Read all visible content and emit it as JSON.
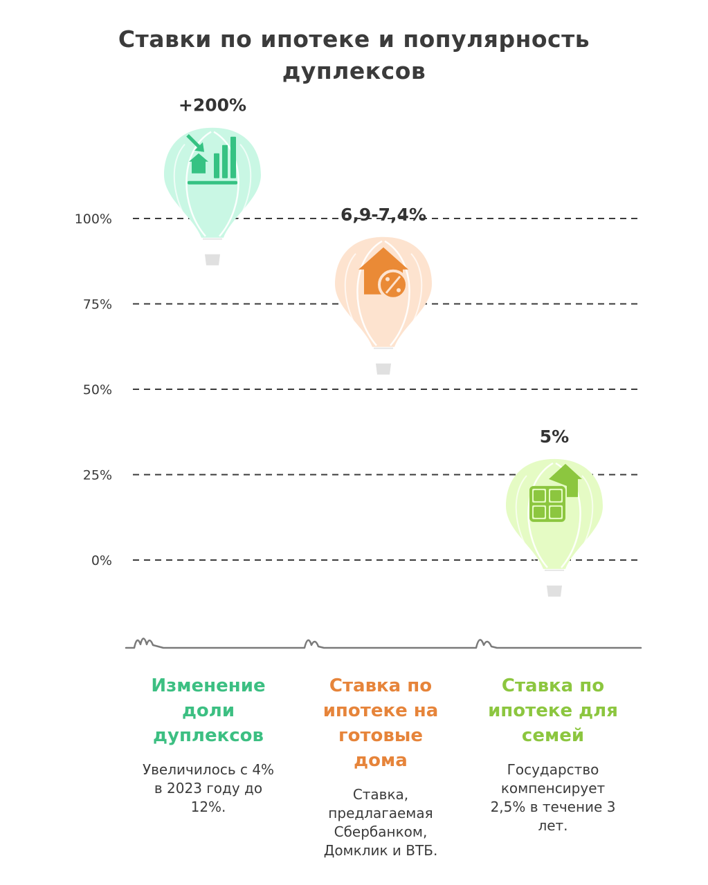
{
  "title": "Ставки по ипотеке и популярность дуплексов",
  "chart_data": {
    "type": "scatter",
    "title": "Ставки по ипотеке и популярность дуплексов",
    "y_ticks": [
      "0%",
      "25%",
      "50%",
      "75%",
      "100%"
    ],
    "y_tick_values": [
      0,
      25,
      50,
      75,
      100
    ],
    "grid": "dashed horizontal",
    "points": [
      {
        "value_label": "+200%",
        "level": 112,
        "color": "#c9f7e4",
        "icon_color": "#36c283",
        "icon": "chart-house-icon"
      },
      {
        "value_label": "6,9-7,4%",
        "level": 80,
        "color": "#fde3cf",
        "icon_color": "#ea8a36",
        "icon": "house-percent-icon"
      },
      {
        "value_label": "5%",
        "level": 15,
        "color": "#e5fbc4",
        "icon_color": "#8cc63f",
        "icon": "calculator-house-icon"
      }
    ]
  },
  "columns": [
    {
      "heading": "Изменение доли дуплексов",
      "heading_lines": [
        "Изменение",
        "доли",
        "дуплексов"
      ],
      "color": "#3cbf82",
      "description_lines": [
        "Увеличилось с 4%",
        "в 2023 году до",
        "12%."
      ]
    },
    {
      "heading": "Ставка по ипотеке на готовые дома",
      "heading_lines": [
        "Ставка по",
        "ипотеке на",
        "готовые",
        "дома"
      ],
      "color": "#e6843a",
      "description_lines": [
        "Ставка,",
        "предлагаемая",
        "Сбербанком,",
        "Домклик и ВТБ."
      ]
    },
    {
      "heading": "Ставка по ипотеке для семей",
      "heading_lines": [
        "Ставка по",
        "ипотеке для",
        "семей"
      ],
      "color": "#8cc63f",
      "description_lines": [
        "Государство",
        "компенсирует",
        "2,5% в течение 3",
        "лет."
      ]
    }
  ]
}
